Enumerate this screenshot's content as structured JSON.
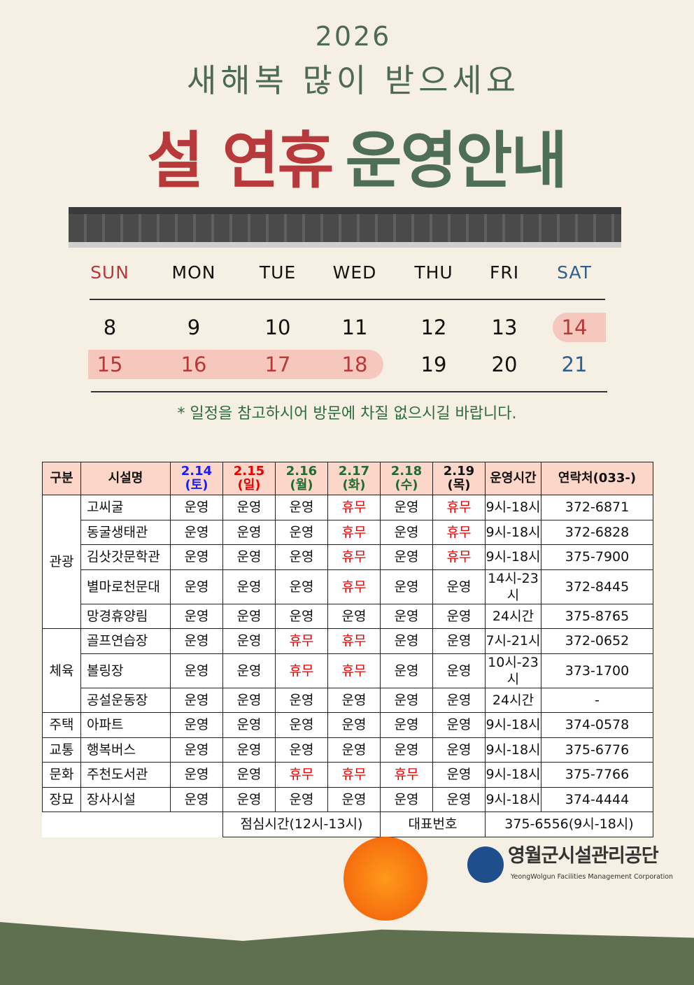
{
  "header": {
    "year": "2026",
    "greeting": "새해복 많이 받으세요",
    "title_red": "설 연휴",
    "title_green": "운영안내"
  },
  "calendar": {
    "days": [
      "SUN",
      "MON",
      "TUE",
      "WED",
      "THU",
      "FRI",
      "SAT"
    ],
    "week1": [
      "8",
      "9",
      "10",
      "11",
      "12",
      "13",
      "14"
    ],
    "week2": [
      "15",
      "16",
      "17",
      "18",
      "19",
      "20",
      "21"
    ],
    "holidays": [
      "14",
      "15",
      "16",
      "17",
      "18"
    ]
  },
  "note": "* 일정을 참고하시어 방문에 차질 없으시길 바랍니다.",
  "table": {
    "headers": [
      "구분",
      "시설명",
      "2.14\n(토)",
      "2.15\n(일)",
      "2.16\n(월)",
      "2.17\n(화)",
      "2.18\n(수)",
      "2.19\n(목)",
      "운영시간",
      "연락처(033-)"
    ],
    "header_colors": [
      "#111",
      "#111",
      "#1a1aff",
      "#e60000",
      "#1f6b32",
      "#1f6b32",
      "#1f6b32",
      "#111",
      "#111",
      "#111"
    ],
    "groups": [
      {
        "category": "관광",
        "rows": [
          [
            "고씨굴",
            "운영",
            "운영",
            "운영",
            "휴무",
            "운영",
            "휴무",
            "9시-18시",
            "372-6871"
          ],
          [
            "동굴생태관",
            "운영",
            "운영",
            "운영",
            "휴무",
            "운영",
            "휴무",
            "9시-18시",
            "372-6828"
          ],
          [
            "김삿갓문학관",
            "운영",
            "운영",
            "운영",
            "휴무",
            "운영",
            "휴무",
            "9시-18시",
            "375-7900"
          ],
          [
            "별마로천문대",
            "운영",
            "운영",
            "운영",
            "휴무",
            "운영",
            "운영",
            "14시-23시",
            "372-8445"
          ],
          [
            "망경휴양림",
            "운영",
            "운영",
            "운영",
            "운영",
            "운영",
            "운영",
            "24시간",
            "375-8765"
          ]
        ]
      },
      {
        "category": "체육",
        "rows": [
          [
            "골프연습장",
            "운영",
            "운영",
            "휴무",
            "휴무",
            "운영",
            "운영",
            "7시-21시",
            "372-0652"
          ],
          [
            "볼링장",
            "운영",
            "운영",
            "휴무",
            "휴무",
            "운영",
            "운영",
            "10시-23시",
            "373-1700"
          ],
          [
            "공설운동장",
            "운영",
            "운영",
            "운영",
            "운영",
            "운영",
            "운영",
            "24시간",
            "-"
          ]
        ]
      },
      {
        "category": "주택",
        "rows": [
          [
            "아파트",
            "운영",
            "운영",
            "운영",
            "운영",
            "운영",
            "운영",
            "9시-18시",
            "374-0578"
          ]
        ]
      },
      {
        "category": "교통",
        "rows": [
          [
            "행복버스",
            "운영",
            "운영",
            "운영",
            "운영",
            "운영",
            "운영",
            "9시-18시",
            "375-6776"
          ]
        ]
      },
      {
        "category": "문화",
        "rows": [
          [
            "주천도서관",
            "운영",
            "운영",
            "휴무",
            "휴무",
            "휴무",
            "운영",
            "9시-18시",
            "375-7766"
          ]
        ]
      },
      {
        "category": "장묘",
        "rows": [
          [
            "장사시설",
            "운영",
            "운영",
            "운영",
            "운영",
            "운영",
            "운영",
            "9시-18시",
            "374-4444"
          ]
        ]
      }
    ],
    "footer": {
      "lunch": "점심시간(12시-13시)",
      "main_label": "대표번호",
      "main_number": "375-6556(9시-18시)"
    }
  },
  "logo": {
    "korean": "영월군시설관리공단",
    "english": "YeongWolgun Facilities Management Corporation"
  },
  "colors": {
    "red": "#b8393b",
    "green": "#4f6e57",
    "closed": "#e60000",
    "highlight": "#f6c7bd"
  }
}
